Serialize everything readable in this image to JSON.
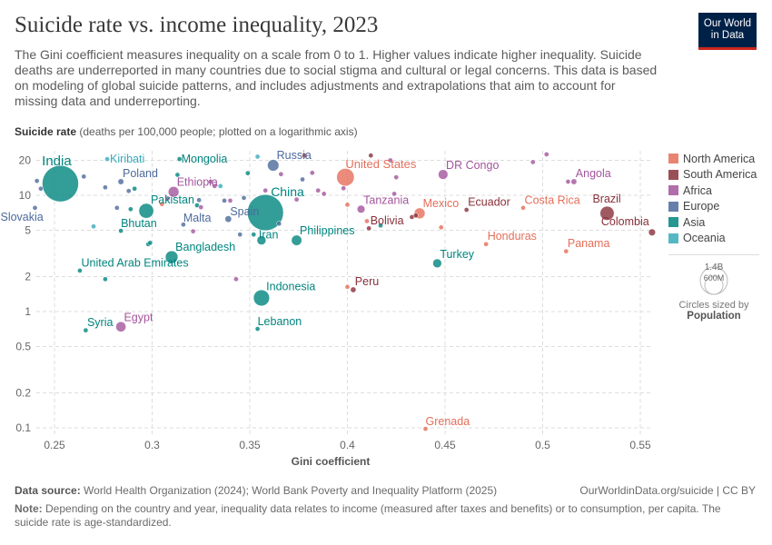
{
  "header": {
    "title": "Suicide rate vs. income inequality, 2023",
    "subtitle": "The Gini coefficient measures inequality on a scale from 0 to 1. Higher values indicate higher inequality. Suicide deaths are underreported in many countries due to social stigma and cultural or legal concerns. This data is based on modeling of global suicide patterns, and includes adjustments and extrapolations that aim to account for missing data and underreporting.",
    "logo_line1": "Our World",
    "logo_line2": "in Data"
  },
  "chart_data": {
    "type": "scatter",
    "title": "Suicide rate vs. income inequality, 2023",
    "ylabel_bold": "Suicide rate",
    "ylabel_rest": " (deaths per 100,000 people; plotted on a logarithmic axis)",
    "xlabel": "Gini coefficient",
    "x_scale": "linear",
    "y_scale": "log",
    "xlim": [
      0.24,
      0.555
    ],
    "ylim": [
      0.09,
      24
    ],
    "x_ticks": [
      "0.25",
      "0.3",
      "0.35",
      "0.4",
      "0.45",
      "0.5",
      "0.55"
    ],
    "y_ticks": [
      "0.1",
      "0.2",
      "0.5",
      "1",
      "2",
      "5",
      "10",
      "20"
    ],
    "grid": true,
    "legend_placement": "right",
    "colors": {
      "North America": "#E56E5A",
      "South America": "#883039",
      "Africa": "#A2559C",
      "Europe": "#4C6A9C",
      "Asia": "#00847E",
      "Oceania": "#38AABA"
    },
    "legend": [
      "North America",
      "South America",
      "Africa",
      "Europe",
      "Asia",
      "Oceania"
    ],
    "size_legend": {
      "big": "1.4B",
      "small": "600M",
      "caption": "Circles sized by",
      "variable": "Population"
    },
    "points": [
      {
        "name": "India",
        "region": "Asia",
        "x": 0.253,
        "y": 12.6,
        "pop": 1430,
        "label": true
      },
      {
        "name": "Slovakia",
        "region": "Europe",
        "x": 0.24,
        "y": 7.8,
        "pop": 5,
        "label": true
      },
      {
        "name": "Kiribati",
        "region": "Oceania",
        "x": 0.277,
        "y": 20.5,
        "pop": 0.1,
        "label": true
      },
      {
        "name": "Mongolia",
        "region": "Asia",
        "x": 0.314,
        "y": 20.5,
        "pop": 3,
        "label": true
      },
      {
        "name": "Poland",
        "region": "Europe",
        "x": 0.284,
        "y": 13.1,
        "pop": 37,
        "label": true
      },
      {
        "name": "Ethiopia",
        "region": "Africa",
        "x": 0.311,
        "y": 10.7,
        "pop": 126,
        "label": true
      },
      {
        "name": "Pakistan",
        "region": "Asia",
        "x": 0.297,
        "y": 7.35,
        "pop": 240,
        "label": true
      },
      {
        "name": "Bhutan",
        "region": "Asia",
        "x": 0.284,
        "y": 4.95,
        "pop": 0.8,
        "label": true
      },
      {
        "name": "Malta",
        "region": "Europe",
        "x": 0.316,
        "y": 5.6,
        "pop": 0.5,
        "label": true
      },
      {
        "name": "Spain",
        "region": "Europe",
        "x": 0.339,
        "y": 6.25,
        "pop": 48,
        "label": true
      },
      {
        "name": "Russia",
        "region": "Europe",
        "x": 0.362,
        "y": 18.1,
        "pop": 144,
        "label": true
      },
      {
        "name": "China",
        "region": "Asia",
        "x": 0.358,
        "y": 7.1,
        "pop": 1410,
        "label": true
      },
      {
        "name": "Iran",
        "region": "Asia",
        "x": 0.356,
        "y": 4.1,
        "pop": 89,
        "label": true
      },
      {
        "name": "Bangladesh",
        "region": "Asia",
        "x": 0.31,
        "y": 2.94,
        "pop": 172,
        "label": true
      },
      {
        "name": "United Arab Emirates",
        "region": "Asia",
        "x": 0.263,
        "y": 2.25,
        "pop": 10,
        "label": true
      },
      {
        "name": "Indonesia",
        "region": "Asia",
        "x": 0.356,
        "y": 1.31,
        "pop": 277,
        "label": true
      },
      {
        "name": "Lebanon",
        "region": "Asia",
        "x": 0.354,
        "y": 0.71,
        "pop": 5,
        "label": true
      },
      {
        "name": "Syria",
        "region": "Asia",
        "x": 0.266,
        "y": 0.69,
        "pop": 23,
        "label": true
      },
      {
        "name": "Egypt",
        "region": "Africa",
        "x": 0.284,
        "y": 0.74,
        "pop": 112,
        "label": true
      },
      {
        "name": "United States",
        "region": "North America",
        "x": 0.399,
        "y": 14.3,
        "pop": 335,
        "label": true
      },
      {
        "name": "DR Congo",
        "region": "Africa",
        "x": 0.449,
        "y": 15.1,
        "pop": 102,
        "label": true
      },
      {
        "name": "Tanzania",
        "region": "Africa",
        "x": 0.407,
        "y": 7.6,
        "pop": 67,
        "label": true
      },
      {
        "name": "Mexico",
        "region": "North America",
        "x": 0.437,
        "y": 7.0,
        "pop": 128,
        "label": true
      },
      {
        "name": "Ecuador",
        "region": "South America",
        "x": 0.461,
        "y": 7.5,
        "pop": 18,
        "label": true
      },
      {
        "name": "Costa Rica",
        "region": "North America",
        "x": 0.49,
        "y": 7.8,
        "pop": 5,
        "label": true
      },
      {
        "name": "Bolivia",
        "region": "South America",
        "x": 0.411,
        "y": 5.2,
        "pop": 12,
        "label": true
      },
      {
        "name": "Philippines",
        "region": "Asia",
        "x": 0.374,
        "y": 4.1,
        "pop": 117,
        "label": true
      },
      {
        "name": "Honduras",
        "region": "North America",
        "x": 0.471,
        "y": 3.8,
        "pop": 10,
        "label": true
      },
      {
        "name": "Turkey",
        "region": "Asia",
        "x": 0.446,
        "y": 2.6,
        "pop": 85,
        "label": true
      },
      {
        "name": "Peru",
        "region": "South America",
        "x": 0.403,
        "y": 1.54,
        "pop": 34,
        "label": true
      },
      {
        "name": "Brazil",
        "region": "South America",
        "x": 0.533,
        "y": 7.0,
        "pop": 216,
        "label": true
      },
      {
        "name": "Colombia",
        "region": "South America",
        "x": 0.556,
        "y": 4.8,
        "pop": 52,
        "label": true
      },
      {
        "name": "Panama",
        "region": "North America",
        "x": 0.512,
        "y": 3.3,
        "pop": 4,
        "label": true
      },
      {
        "name": "Angola",
        "region": "Africa",
        "x": 0.516,
        "y": 13.1,
        "pop": 36,
        "label": true
      },
      {
        "name": "Grenada",
        "region": "North America",
        "x": 0.44,
        "y": 0.098,
        "pop": 0.1,
        "label": true
      },
      {
        "name": "",
        "region": "Europe",
        "x": 0.241,
        "y": 13.3,
        "pop": 3
      },
      {
        "name": "",
        "region": "Europe",
        "x": 0.243,
        "y": 11.4,
        "pop": 3
      },
      {
        "name": "",
        "region": "Europe",
        "x": 0.265,
        "y": 14.5,
        "pop": 2
      },
      {
        "name": "",
        "region": "Europe",
        "x": 0.276,
        "y": 11.7,
        "pop": 2
      },
      {
        "name": "",
        "region": "Europe",
        "x": 0.288,
        "y": 10.9,
        "pop": 3
      },
      {
        "name": "",
        "region": "Europe",
        "x": 0.282,
        "y": 7.8,
        "pop": 2
      },
      {
        "name": "",
        "region": "Europe",
        "x": 0.324,
        "y": 9.1,
        "pop": 20
      },
      {
        "name": "",
        "region": "Europe",
        "x": 0.337,
        "y": 9.0,
        "pop": 8
      },
      {
        "name": "",
        "region": "Europe",
        "x": 0.347,
        "y": 9.5,
        "pop": 3
      },
      {
        "name": "",
        "region": "Europe",
        "x": 0.377,
        "y": 13.7,
        "pop": 2
      },
      {
        "name": "",
        "region": "Europe",
        "x": 0.365,
        "y": 5.7,
        "pop": 2
      },
      {
        "name": "",
        "region": "Europe",
        "x": 0.345,
        "y": 4.6,
        "pop": 10
      },
      {
        "name": "",
        "region": "Asia",
        "x": 0.291,
        "y": 11.4,
        "pop": 4
      },
      {
        "name": "",
        "region": "Asia",
        "x": 0.289,
        "y": 7.6,
        "pop": 3
      },
      {
        "name": "",
        "region": "Asia",
        "x": 0.313,
        "y": 15.0,
        "pop": 20
      },
      {
        "name": "",
        "region": "Asia",
        "x": 0.298,
        "y": 3.8,
        "pop": 10
      },
      {
        "name": "",
        "region": "Asia",
        "x": 0.299,
        "y": 3.9,
        "pop": 2
      },
      {
        "name": "",
        "region": "Asia",
        "x": 0.276,
        "y": 1.9,
        "pop": 2
      },
      {
        "name": "",
        "region": "Asia",
        "x": 0.349,
        "y": 15.5,
        "pop": 10
      },
      {
        "name": "",
        "region": "Asia",
        "x": 0.352,
        "y": 4.6,
        "pop": 3
      },
      {
        "name": "",
        "region": "Asia",
        "x": 0.417,
        "y": 5.5,
        "pop": 4
      },
      {
        "name": "",
        "region": "Asia",
        "x": 0.323,
        "y": 8.2,
        "pop": 3
      },
      {
        "name": "",
        "region": "Oceania",
        "x": 0.27,
        "y": 5.4,
        "pop": 1
      },
      {
        "name": "",
        "region": "Oceania",
        "x": 0.335,
        "y": 12.0,
        "pop": 1
      },
      {
        "name": "",
        "region": "Oceania",
        "x": 0.354,
        "y": 21.5,
        "pop": 0.5
      },
      {
        "name": "",
        "region": "Africa",
        "x": 0.308,
        "y": 9.4,
        "pop": 4
      },
      {
        "name": "",
        "region": "Africa",
        "x": 0.33,
        "y": 13.1,
        "pop": 3
      },
      {
        "name": "",
        "region": "Africa",
        "x": 0.332,
        "y": 12.0,
        "pop": 4
      },
      {
        "name": "",
        "region": "Africa",
        "x": 0.325,
        "y": 7.9,
        "pop": 2
      },
      {
        "name": "",
        "region": "Africa",
        "x": 0.321,
        "y": 4.9,
        "pop": 3
      },
      {
        "name": "",
        "region": "Africa",
        "x": 0.343,
        "y": 1.9,
        "pop": 2
      },
      {
        "name": "",
        "region": "Africa",
        "x": 0.358,
        "y": 11.0,
        "pop": 3
      },
      {
        "name": "",
        "region": "Africa",
        "x": 0.366,
        "y": 15.2,
        "pop": 3
      },
      {
        "name": "",
        "region": "Africa",
        "x": 0.385,
        "y": 11.0,
        "pop": 3
      },
      {
        "name": "",
        "region": "Africa",
        "x": 0.382,
        "y": 15.6,
        "pop": 3
      },
      {
        "name": "",
        "region": "Africa",
        "x": 0.388,
        "y": 10.3,
        "pop": 3
      },
      {
        "name": "",
        "region": "Africa",
        "x": 0.425,
        "y": 14.3,
        "pop": 4
      },
      {
        "name": "",
        "region": "Africa",
        "x": 0.424,
        "y": 10.3,
        "pop": 6
      },
      {
        "name": "",
        "region": "Africa",
        "x": 0.398,
        "y": 11.5,
        "pop": 3
      },
      {
        "name": "",
        "region": "Africa",
        "x": 0.374,
        "y": 9.2,
        "pop": 20
      },
      {
        "name": "",
        "region": "Africa",
        "x": 0.422,
        "y": 20.0,
        "pop": 3
      },
      {
        "name": "",
        "region": "Africa",
        "x": 0.495,
        "y": 19.3,
        "pop": 3
      },
      {
        "name": "",
        "region": "Africa",
        "x": 0.502,
        "y": 22.5,
        "pop": 2
      },
      {
        "name": "",
        "region": "Africa",
        "x": 0.513,
        "y": 13.1,
        "pop": 3
      },
      {
        "name": "",
        "region": "Africa",
        "x": 0.34,
        "y": 9.0,
        "pop": 20
      },
      {
        "name": "",
        "region": "South America",
        "x": 0.378,
        "y": 22.0,
        "pop": 2
      },
      {
        "name": "",
        "region": "South America",
        "x": 0.412,
        "y": 22.0,
        "pop": 2
      },
      {
        "name": "",
        "region": "South America",
        "x": 0.433,
        "y": 6.5,
        "pop": 6
      },
      {
        "name": "",
        "region": "South America",
        "x": 0.435,
        "y": 6.7,
        "pop": 4
      },
      {
        "name": "",
        "region": "North America",
        "x": 0.4,
        "y": 1.63,
        "pop": 2
      },
      {
        "name": "",
        "region": "North America",
        "x": 0.41,
        "y": 6.0,
        "pop": 2
      },
      {
        "name": "",
        "region": "North America",
        "x": 0.448,
        "y": 5.3,
        "pop": 2
      },
      {
        "name": "",
        "region": "North America",
        "x": 0.305,
        "y": 8.4,
        "pop": 3
      },
      {
        "name": "",
        "region": "North America",
        "x": 0.4,
        "y": 8.3,
        "pop": 2
      }
    ]
  },
  "footer": {
    "source_label": "Data source:",
    "source_text": " World Health Organization (2024); World Bank Poverty and Inequality Platform (2025)",
    "right": "OurWorldinData.org/suicide | CC BY",
    "note_label": "Note:",
    "note_text": " Depending on the country and year, inequality data relates to income (measured after taxes and benefits) or to consumption, per capita. The suicide rate is age-standardized."
  }
}
